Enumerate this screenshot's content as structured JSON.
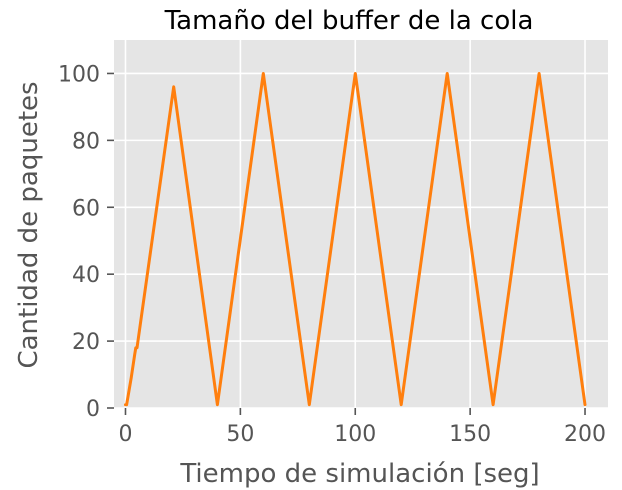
{
  "chart_data": {
    "type": "line",
    "title": "Tamaño del buffer de la cola",
    "xlabel": "Tiempo de simulación [seg]",
    "ylabel": "Cantidad de paquetes",
    "xlim": [
      -5,
      210
    ],
    "ylim": [
      0,
      110
    ],
    "xticks": [
      0,
      50,
      100,
      150,
      200
    ],
    "yticks": [
      0,
      20,
      40,
      60,
      80,
      100
    ],
    "grid": true,
    "background_color": "#e5e5e5",
    "series": [
      {
        "color": "#ff7f0e",
        "x": [
          0,
          0.5,
          2.5,
          4,
          4.5,
          5,
          21,
          40,
          60,
          80,
          100,
          120,
          140,
          160,
          180,
          200
        ],
        "y": [
          1,
          1,
          9,
          16,
          18,
          18,
          96,
          1,
          100,
          1,
          100,
          1,
          100,
          1,
          100,
          1
        ]
      }
    ]
  }
}
